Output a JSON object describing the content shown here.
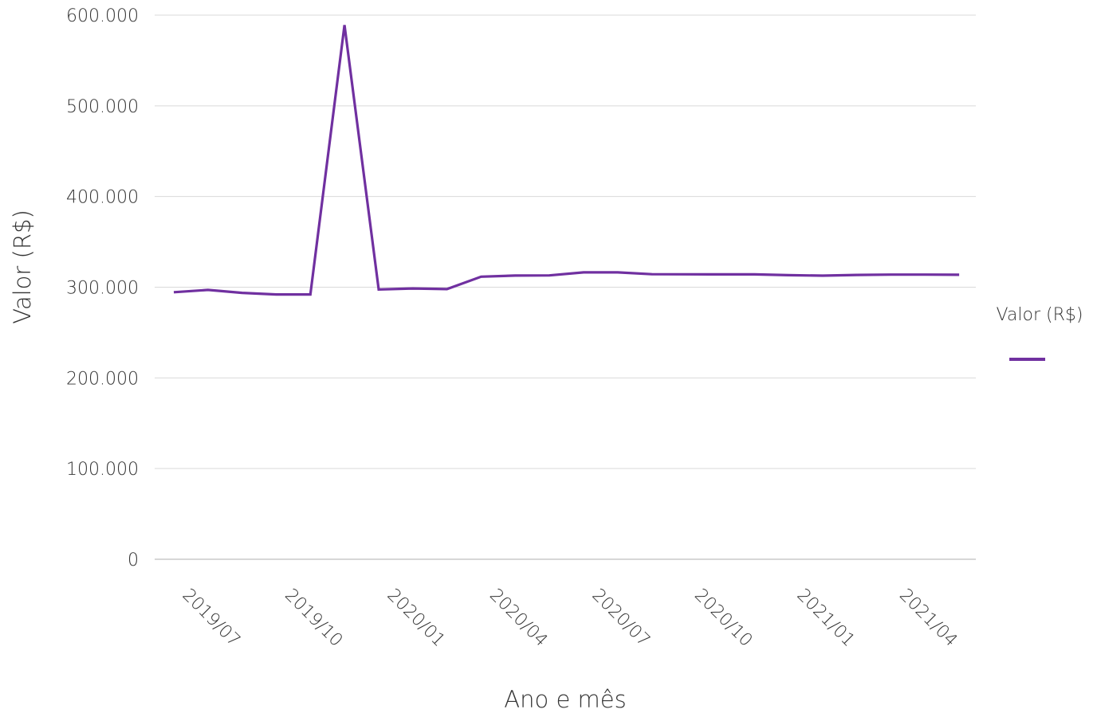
{
  "chart_data": {
    "type": "line",
    "title": "",
    "xlabel": "Ano e mês",
    "ylabel": "Valor (R$)",
    "ylim": [
      0,
      600000
    ],
    "yticks": [
      0,
      100000,
      200000,
      300000,
      400000,
      500000,
      600000
    ],
    "ytick_labels": [
      "0",
      "100.000",
      "200.000",
      "300.000",
      "400.000",
      "500.000",
      "600.000"
    ],
    "x": [
      "2019/06",
      "2019/07",
      "2019/08",
      "2019/09",
      "2019/10",
      "2019/11",
      "2019/12",
      "2020/01",
      "2020/02",
      "2020/03",
      "2020/04",
      "2020/05",
      "2020/06",
      "2020/07",
      "2020/08",
      "2020/09",
      "2020/10",
      "2020/11",
      "2020/12",
      "2021/01",
      "2021/02",
      "2021/03",
      "2021/04",
      "2021/05"
    ],
    "xtick_labels": [
      "2019/07",
      "2019/10",
      "2020/01",
      "2020/04",
      "2020/07",
      "2020/10",
      "2021/01",
      "2021/04"
    ],
    "series": [
      {
        "name": "Valor (R$)",
        "values": [
          294500,
          297000,
          293800,
          292000,
          292000,
          589000,
          297500,
          298600,
          297900,
          311600,
          312800,
          313000,
          316300,
          316300,
          314300,
          314200,
          314100,
          314100,
          313300,
          312700,
          313500,
          313900,
          313900,
          313700
        ]
      }
    ],
    "legend": {
      "title": "Valor (R$)",
      "position": "right"
    },
    "grid": true,
    "colors": {
      "series": "#7030a0",
      "grid": "#d9d9d9",
      "axis": "#bfbfbf",
      "text": "#333333"
    }
  }
}
